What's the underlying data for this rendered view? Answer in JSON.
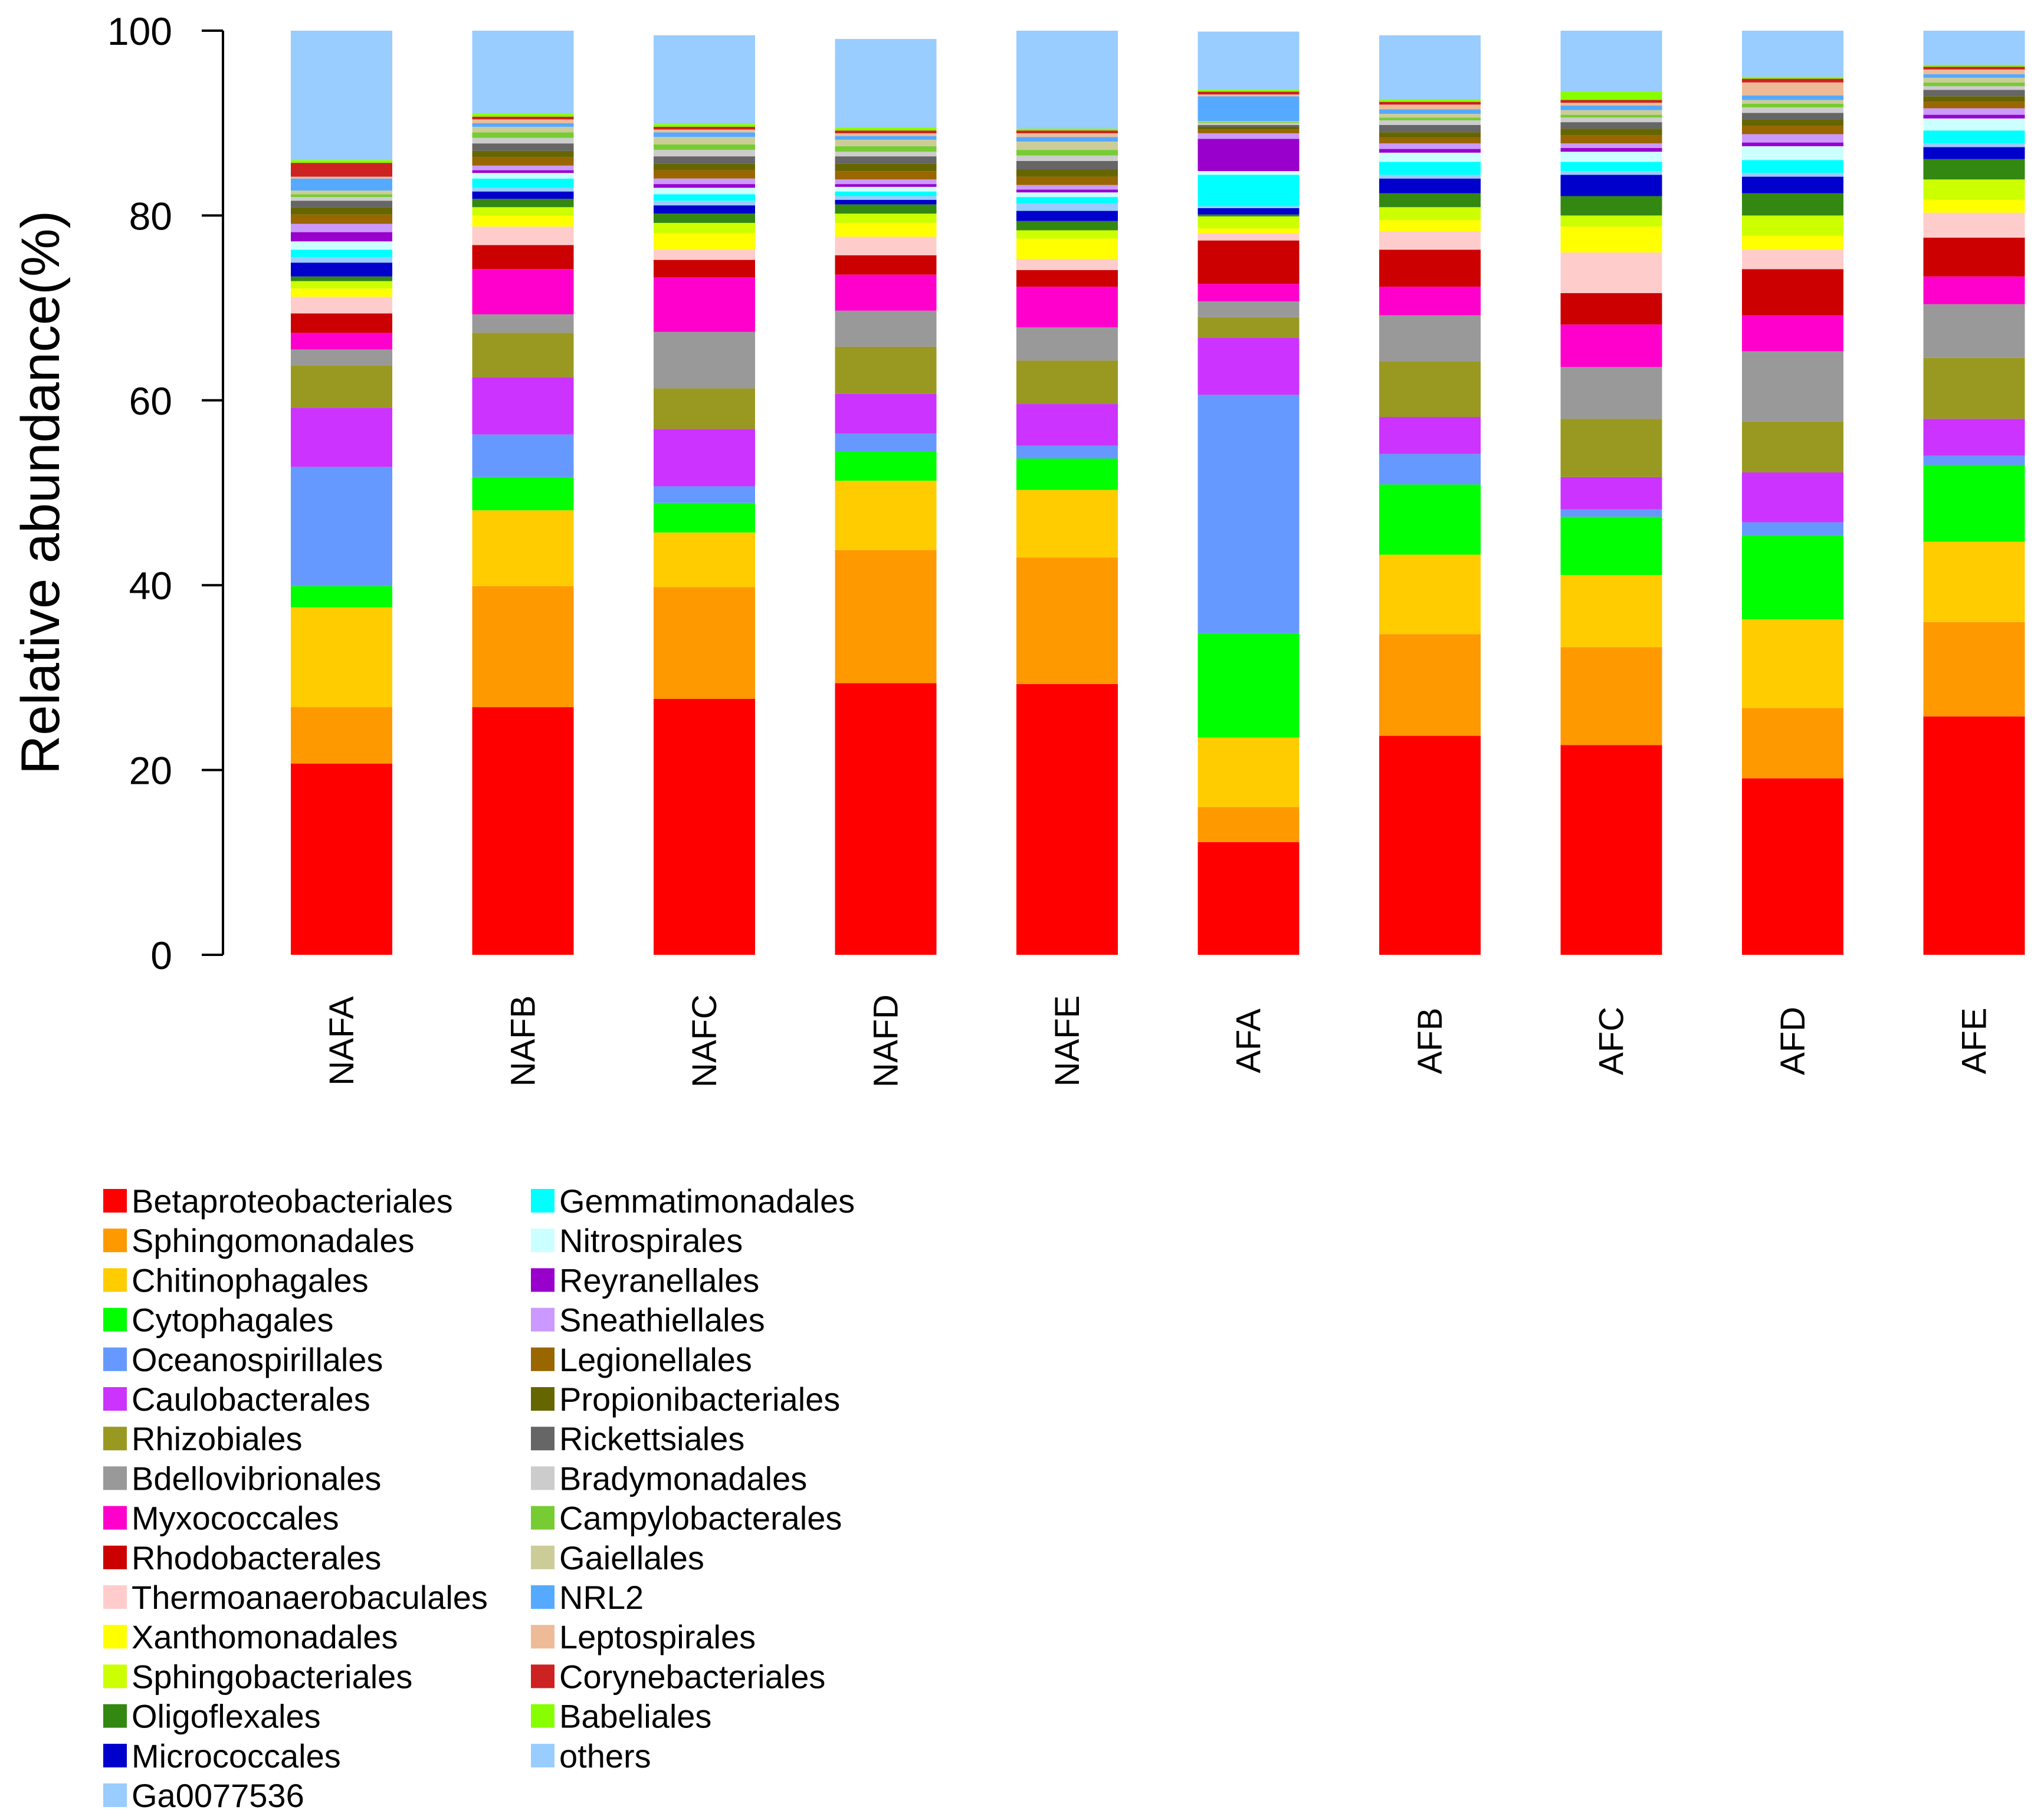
{
  "chart_data": {
    "type": "bar",
    "stacked": true,
    "title": "",
    "xlabel": "",
    "ylabel": "Relative abundance(%)",
    "ylim": [
      0,
      100
    ],
    "yticks": [
      0,
      20,
      40,
      60,
      80,
      100
    ],
    "categories": [
      "NAFA",
      "NAFB",
      "NAFC",
      "NAFD",
      "NAFE",
      "AFA",
      "AFB",
      "AFC",
      "AFD",
      "AFE"
    ],
    "series": [
      {
        "name": "Betaproteobacteriales",
        "color": "#FF0000",
        "values": [
          20.7,
          26.8,
          27.7,
          29.4,
          29.3,
          12.2,
          23.7,
          22.7,
          19.1,
          25.8
        ]
      },
      {
        "name": "Sphingomonadales",
        "color": "#FF9900",
        "values": [
          6.1,
          13.1,
          12.1,
          14.4,
          13.7,
          3.8,
          11.0,
          10.6,
          7.6,
          10.2
        ]
      },
      {
        "name": "Chitinophagales",
        "color": "#FFCC00",
        "values": [
          10.8,
          8.2,
          5.9,
          7.5,
          7.3,
          7.5,
          8.6,
          7.8,
          9.6,
          8.7
        ]
      },
      {
        "name": "Cytophagales",
        "color": "#00FF00",
        "values": [
          2.3,
          3.6,
          3.2,
          3.2,
          3.4,
          11.3,
          7.6,
          6.3,
          9.1,
          8.3
        ]
      },
      {
        "name": "Oceanospirillales",
        "color": "#6699FF",
        "values": [
          12.9,
          4.6,
          1.8,
          1.9,
          1.4,
          25.8,
          3.3,
          0.8,
          1.4,
          1.0
        ]
      },
      {
        "name": "Caulobacterales",
        "color": "#CC33FF",
        "values": [
          6.4,
          6.2,
          6.2,
          4.3,
          4.5,
          6.2,
          4.0,
          3.5,
          5.4,
          4.0
        ]
      },
      {
        "name": "Rhizobiales",
        "color": "#999922",
        "values": [
          4.6,
          4.8,
          4.4,
          5.1,
          4.7,
          2.2,
          6.0,
          6.3,
          5.5,
          6.6
        ]
      },
      {
        "name": "Bdellovibrionales",
        "color": "#999999",
        "values": [
          1.7,
          2.0,
          6.1,
          3.9,
          3.6,
          1.7,
          5.0,
          5.6,
          7.6,
          5.8
        ]
      },
      {
        "name": "Myxococcales",
        "color": "#FF00CC",
        "values": [
          1.8,
          4.9,
          5.9,
          3.9,
          4.4,
          1.9,
          3.1,
          4.6,
          3.9,
          3.0
        ]
      },
      {
        "name": "Rhodobacterales",
        "color": "#CC0000",
        "values": [
          2.1,
          2.6,
          1.9,
          2.1,
          1.8,
          4.7,
          4.0,
          3.4,
          5.0,
          4.2
        ]
      },
      {
        "name": "Thermoanaerobaculales",
        "color": "#FFCCCC",
        "values": [
          1.8,
          2.0,
          1.1,
          2.0,
          1.2,
          0.8,
          2.0,
          4.4,
          2.1,
          2.7
        ]
      },
      {
        "name": "Xanthomonadales",
        "color": "#FFFF00",
        "values": [
          0.9,
          1.2,
          1.8,
          1.5,
          2.2,
          0.5,
          1.2,
          2.8,
          1.5,
          1.4
        ]
      },
      {
        "name": "Sphingobacteriales",
        "color": "#CCFF00",
        "values": [
          0.8,
          0.9,
          1.1,
          1.0,
          0.9,
          1.3,
          1.4,
          1.2,
          2.2,
          2.2
        ]
      },
      {
        "name": "Oligoflexales",
        "color": "#338811",
        "values": [
          0.5,
          0.9,
          1.0,
          1.0,
          1.0,
          0.2,
          1.5,
          2.1,
          2.4,
          2.2
        ]
      },
      {
        "name": "Micrococcales",
        "color": "#0000CC",
        "values": [
          1.5,
          0.8,
          0.9,
          0.5,
          1.1,
          0.7,
          1.6,
          2.3,
          1.8,
          1.3
        ]
      },
      {
        "name": "Ga0077536",
        "color": "#99CCFF",
        "values": [
          0.6,
          0.4,
          0.5,
          0.4,
          0.8,
          0.2,
          0.4,
          0.4,
          0.4,
          0.4
        ]
      },
      {
        "name": "Gemmatimonadales",
        "color": "#00FFFF",
        "values": [
          0.8,
          1.0,
          0.7,
          0.5,
          0.7,
          3.4,
          1.4,
          1.0,
          1.4,
          1.4
        ]
      },
      {
        "name": "Nitrospirales",
        "color": "#CCFFFF",
        "values": [
          0.9,
          0.6,
          0.7,
          0.5,
          0.5,
          0.4,
          1.0,
          1.1,
          1.5,
          1.3
        ]
      },
      {
        "name": "Reyranellales",
        "color": "#9900CC",
        "values": [
          1.0,
          0.3,
          0.4,
          0.3,
          0.3,
          3.5,
          0.4,
          0.4,
          0.4,
          0.4
        ]
      },
      {
        "name": "Sneathiellales",
        "color": "#CC99FF",
        "values": [
          0.9,
          0.5,
          0.6,
          0.5,
          0.5,
          0.6,
          0.6,
          0.5,
          0.9,
          0.7
        ]
      },
      {
        "name": "Legionellales",
        "color": "#996600",
        "values": [
          1.0,
          0.9,
          0.9,
          0.9,
          0.9,
          0.4,
          0.6,
          0.9,
          0.9,
          0.7
        ]
      },
      {
        "name": "Propionibacteriales",
        "color": "#666600",
        "values": [
          0.8,
          0.7,
          0.7,
          0.8,
          0.8,
          0.3,
          0.6,
          0.7,
          0.7,
          0.6
        ]
      },
      {
        "name": "Rickettsiales",
        "color": "#666666",
        "values": [
          0.7,
          0.8,
          0.8,
          0.8,
          0.9,
          0.2,
          0.8,
          0.7,
          0.7,
          0.7
        ]
      },
      {
        "name": "Bradymonadales",
        "color": "#CCCCCC",
        "values": [
          0.4,
          0.6,
          0.7,
          0.5,
          0.6,
          0.2,
          0.5,
          0.5,
          0.6,
          0.4
        ]
      },
      {
        "name": "Campylobacterales",
        "color": "#77CC33",
        "values": [
          0.3,
          0.6,
          0.6,
          0.6,
          0.6,
          0.1,
          0.3,
          0.3,
          0.4,
          0.4
        ]
      },
      {
        "name": "Gaiellales",
        "color": "#CCCC99",
        "values": [
          0.4,
          0.6,
          0.8,
          0.7,
          0.9,
          0.1,
          0.4,
          0.5,
          0.4,
          0.5
        ]
      },
      {
        "name": "NRL2",
        "color": "#55AAFF",
        "values": [
          1.3,
          0.4,
          0.5,
          0.4,
          0.5,
          2.7,
          0.5,
          0.5,
          0.5,
          0.4
        ]
      },
      {
        "name": "Leptospirales",
        "color": "#EEBB99",
        "values": [
          0.2,
          0.4,
          0.3,
          0.3,
          0.4,
          0.2,
          0.5,
          0.3,
          1.4,
          0.5
        ]
      },
      {
        "name": "Corynebacteriales",
        "color": "#CC2222",
        "values": [
          1.5,
          0.3,
          0.3,
          0.3,
          0.3,
          0.3,
          0.3,
          0.3,
          0.4,
          0.3
        ]
      },
      {
        "name": "Babeliales",
        "color": "#88FF00",
        "values": [
          0.3,
          0.3,
          0.3,
          0.3,
          0.2,
          0.2,
          0.3,
          0.9,
          0.2,
          0.2
        ]
      },
      {
        "name": "others",
        "color": "#99CCFF",
        "values": [
          14.2,
          9.9,
          9.6,
          9.6,
          11.2,
          6.3,
          6.9,
          7.9,
          6.4,
          6.1
        ]
      }
    ]
  }
}
